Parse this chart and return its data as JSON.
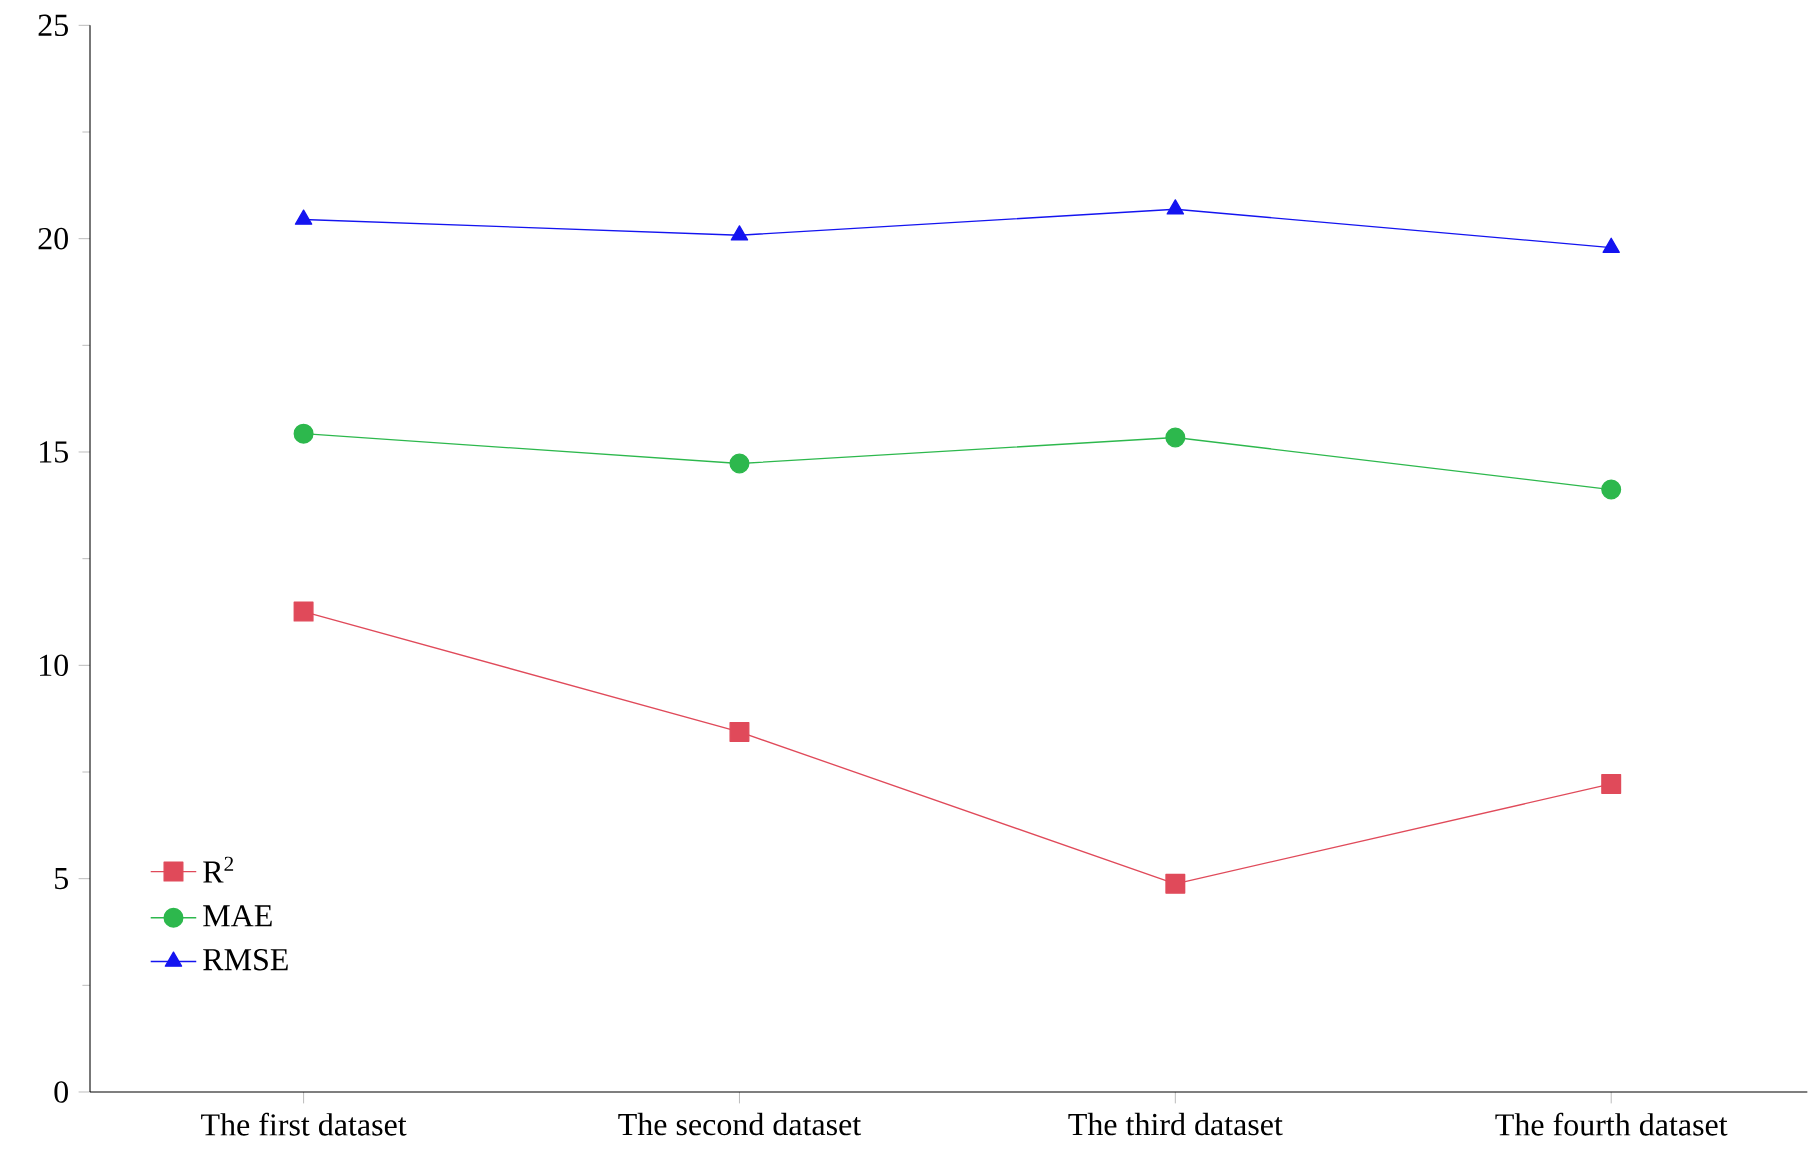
{
  "chart_data": {
    "type": "line",
    "categories": [
      "The first dataset",
      "The second dataset",
      "The third dataset",
      "The fourth dataset"
    ],
    "series": [
      {
        "name": "R$^{2}$",
        "color": "#e04a5a",
        "marker": "square",
        "values": [
          11.26,
          8.44,
          4.88,
          7.22
        ]
      },
      {
        "name": "MAE",
        "color": "#2db84d",
        "marker": "circle",
        "values": [
          15.43,
          14.73,
          15.34,
          14.12
        ]
      },
      {
        "name": "RMSE",
        "color": "#1414f0",
        "marker": "triangle",
        "values": [
          20.45,
          20.08,
          20.69,
          19.79
        ]
      }
    ],
    "ylim": [
      0,
      25
    ],
    "yticks": [
      0,
      5,
      10,
      15,
      20,
      25
    ],
    "grid": false,
    "legend": "bottom left",
    "line_style": "solid"
  }
}
